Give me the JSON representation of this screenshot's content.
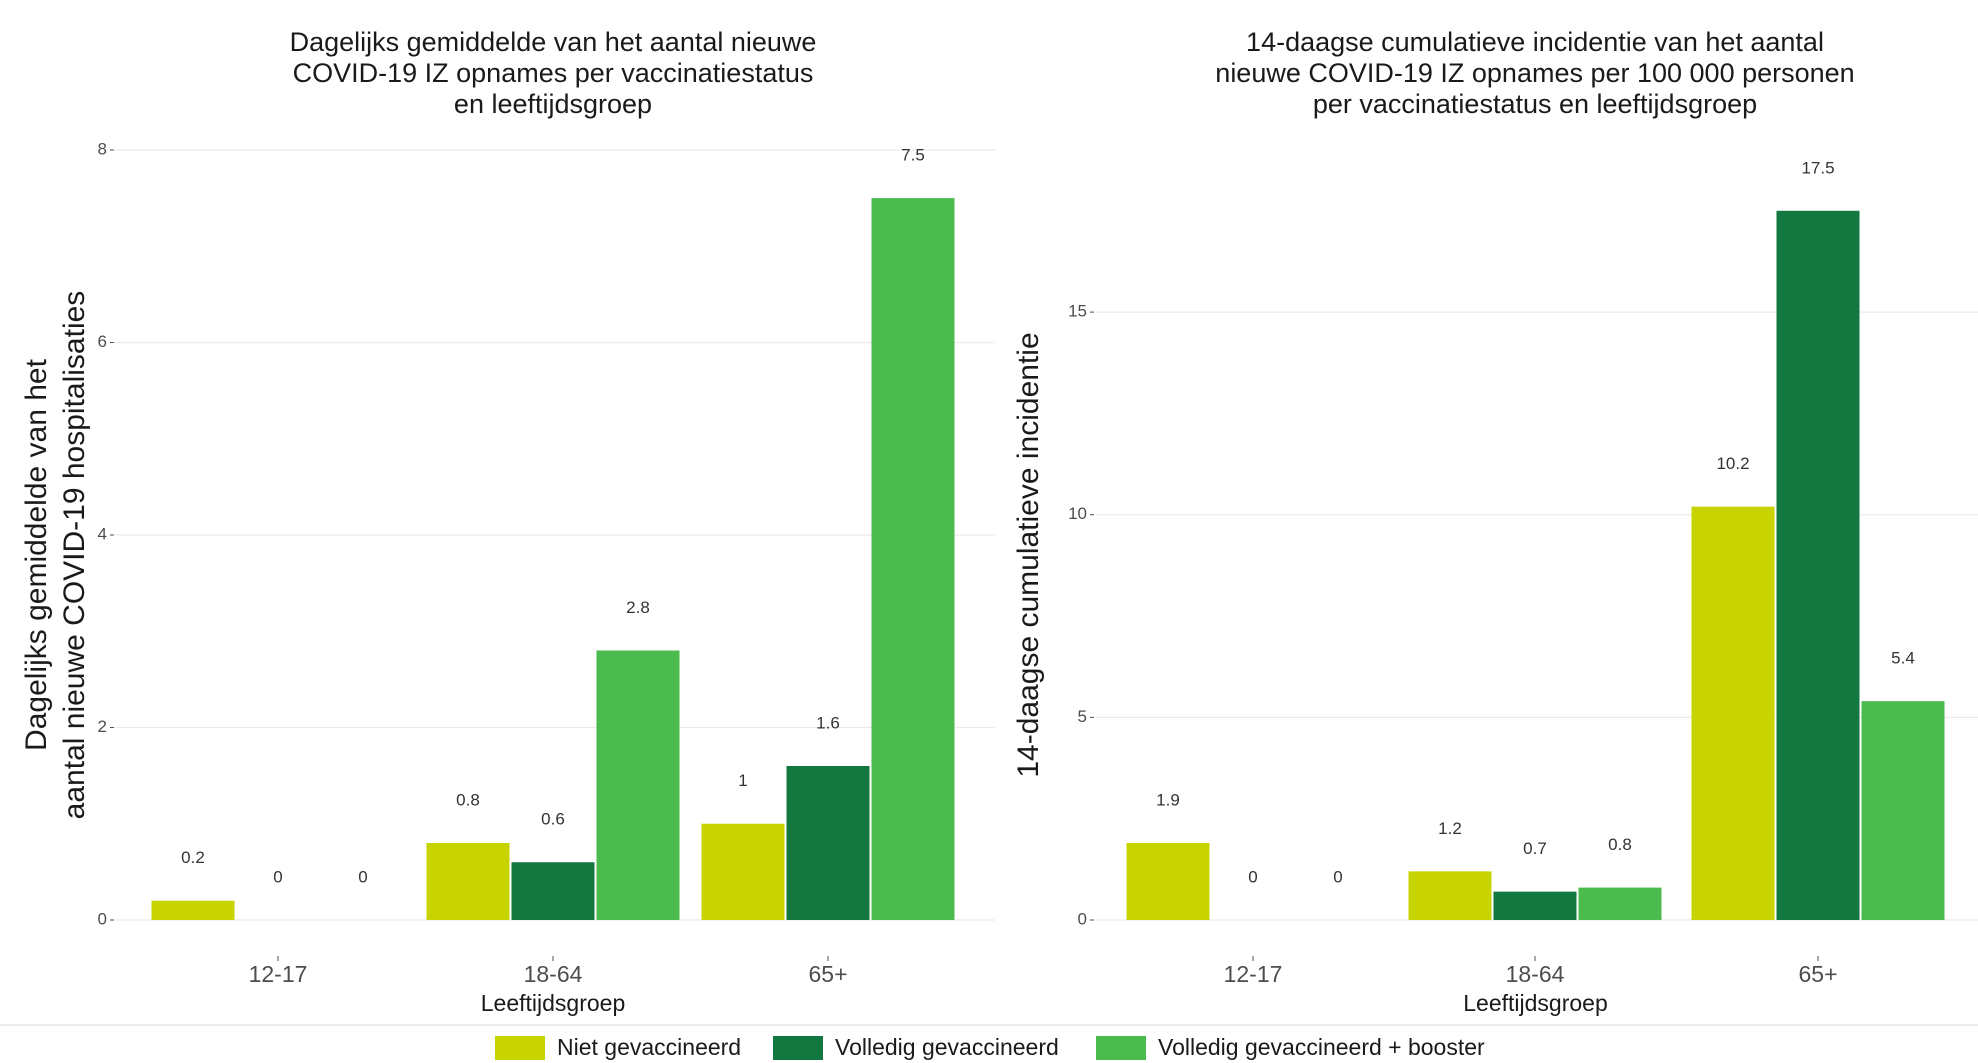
{
  "colors": {
    "niet_gevaccineerd": "#c8d400",
    "volledig_gevaccineerd": "#137740",
    "volledig_booster": "#4cbb4e"
  },
  "legend": {
    "items": [
      {
        "label": "Niet gevaccineerd",
        "color": "#c8d400"
      },
      {
        "label": "Volledig gevaccineerd",
        "color": "#137740"
      },
      {
        "label": "Volledig gevaccineerd + booster",
        "color": "#4cbb4e"
      }
    ],
    "placement": "bottom"
  },
  "chart_data": [
    {
      "type": "bar",
      "title_lines": [
        "Dagelijks gemiddelde van het aantal nieuwe",
        "COVID-19 IZ opnames per vaccinatiestatus",
        "en leeftijdsgroep"
      ],
      "xlabel": "Leeftijdsgroep",
      "ylabel_lines": [
        "Dagelijks gemiddelde van het",
        "aantal nieuwe COVID-19 hospitalisaties"
      ],
      "categories": [
        "12-17",
        "18-64",
        "65+"
      ],
      "ylim": [
        0,
        8
      ],
      "yticks": [
        0,
        2,
        4,
        6,
        8
      ],
      "grid": true,
      "series": [
        {
          "name": "Niet gevaccineerd",
          "values": [
            0.2,
            0.8,
            1
          ]
        },
        {
          "name": "Volledig gevaccineerd",
          "values": [
            0,
            0.6,
            1.6
          ]
        },
        {
          "name": "Volledig gevaccineerd + booster",
          "values": [
            0,
            2.8,
            7.5
          ]
        }
      ]
    },
    {
      "type": "bar",
      "title_lines": [
        "14-daagse cumulatieve incidentie van het aantal",
        "nieuwe COVID-19 IZ opnames per 100 000 personen",
        "per vaccinatiestatus en leeftijdsgroep"
      ],
      "xlabel": "Leeftijdsgroep",
      "ylabel_lines": [
        "14-daagse cumulatieve incidentie"
      ],
      "categories": [
        "12-17",
        "18-64",
        "65+"
      ],
      "ylim": [
        0,
        19
      ],
      "yticks": [
        0,
        5,
        10,
        15
      ],
      "grid": true,
      "series": [
        {
          "name": "Niet gevaccineerd",
          "values": [
            1.9,
            1.2,
            10.2
          ]
        },
        {
          "name": "Volledig gevaccineerd",
          "values": [
            0,
            0.7,
            17.5
          ]
        },
        {
          "name": "Volledig gevaccineerd + booster",
          "values": [
            0,
            0.8,
            5.4
          ]
        }
      ]
    }
  ]
}
